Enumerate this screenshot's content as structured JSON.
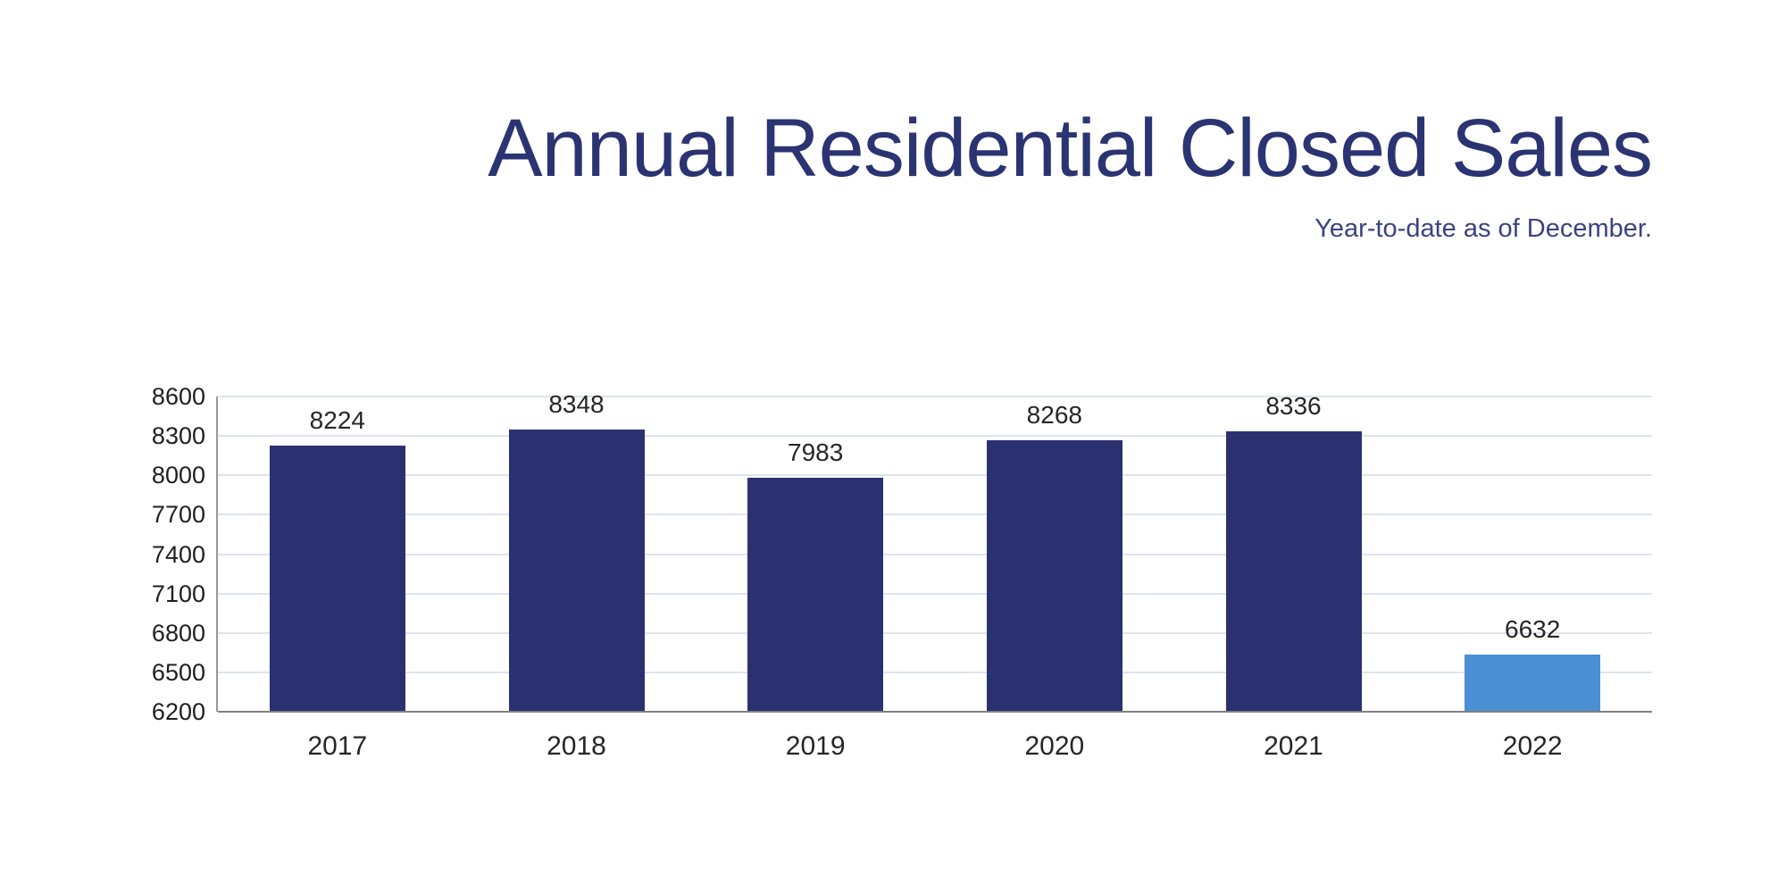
{
  "title": "Annual Residential Closed Sales",
  "subtitle": "Year-to-date as of December.",
  "colors": {
    "title_text": "#2B3472",
    "subtitle_text": "#3A4380",
    "bar_default": "#2B3170",
    "bar_highlight": "#4A8FD3",
    "gridline": "#DDE3EF",
    "y_axis_line": "#999999",
    "baseline": "#808080",
    "tick_text": "#1F1F1F",
    "value_label_text": "#262626"
  },
  "chart_data": {
    "type": "bar",
    "title": "Annual Residential Closed Sales",
    "subtitle": "Year-to-date as of December.",
    "categories": [
      "2017",
      "2018",
      "2019",
      "2020",
      "2021",
      "2022"
    ],
    "values": [
      8224,
      8348,
      7983,
      8268,
      8336,
      6632
    ],
    "data_labels": [
      "8224",
      "8348",
      "7983",
      "8268",
      "8336",
      "6632"
    ],
    "highlight_category": "2022",
    "highlight_index": 5,
    "xlabel": "",
    "ylabel": "",
    "ylim": [
      6200,
      8600
    ],
    "ytick_step": 300,
    "yticks": [
      6200,
      6500,
      6800,
      7100,
      7400,
      7700,
      8000,
      8300,
      8600
    ],
    "grid": true,
    "legend": false,
    "bar_orientation": "vertical"
  }
}
